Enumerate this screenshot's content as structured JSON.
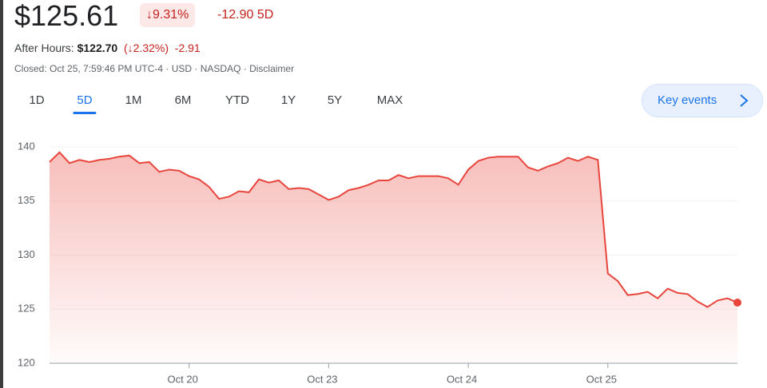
{
  "header": {
    "price": "$125.61",
    "change_pct": "↓9.31%",
    "change": "-12.90 5D",
    "after_hours_label": "After Hours:",
    "after_hours_price": "$122.70",
    "after_hours_pct": "(↓2.32%)",
    "after_hours_change": "-2.91",
    "status": "Closed: Oct 25, 7:59:46 PM UTC-4 · USD · NASDAQ · Disclaimer"
  },
  "tabs": [
    "1D",
    "5D",
    "1M",
    "6M",
    "YTD",
    "1Y",
    "5Y",
    "MAX"
  ],
  "active_tab": 1,
  "key_events": "Key events",
  "chart_data": {
    "type": "area",
    "color": "#e8453c",
    "grid": true,
    "values": [
      138.6,
      139.5,
      138.5,
      138.8,
      138.6,
      138.8,
      138.9,
      139.1,
      139.2,
      138.5,
      138.6,
      137.7,
      137.9,
      137.8,
      137.3,
      137.0,
      136.3,
      135.2,
      135.4,
      135.9,
      135.8,
      137.0,
      136.7,
      136.9,
      136.1,
      136.2,
      136.1,
      135.6,
      135.1,
      135.4,
      136.0,
      136.2,
      136.5,
      136.9,
      136.9,
      137.4,
      137.1,
      137.3,
      137.3,
      137.3,
      137.1,
      136.5,
      137.9,
      138.7,
      139.0,
      139.1,
      139.1,
      139.1,
      138.1,
      137.8,
      138.2,
      138.5,
      139.0,
      138.7,
      139.1,
      138.8,
      128.3,
      127.6,
      126.3,
      126.4,
      126.6,
      126.0,
      126.9,
      126.5,
      126.4,
      125.7,
      125.2,
      125.8,
      126.0,
      125.61
    ],
    "xlim": [
      0,
      69
    ],
    "xticks": [
      {
        "value": 14,
        "label": "Oct 20"
      },
      {
        "value": 28,
        "label": "Oct 23"
      },
      {
        "value": 42,
        "label": "Oct 24"
      },
      {
        "value": 56,
        "label": "Oct 25"
      }
    ],
    "ylim": [
      120,
      140
    ],
    "yticks": [
      140,
      135,
      130,
      125,
      120
    ]
  }
}
